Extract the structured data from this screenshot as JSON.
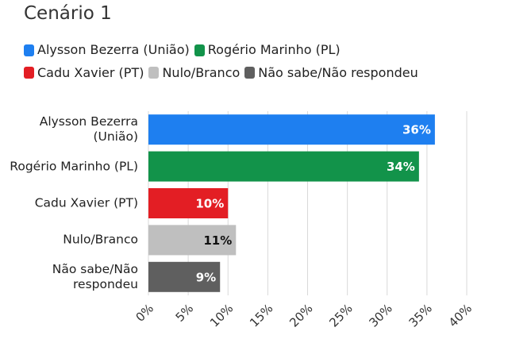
{
  "chart_data": {
    "type": "bar",
    "orientation": "horizontal",
    "title": "Cenário 1",
    "categories": [
      "Alysson Bezerra (União)",
      "Rogério Marinho (PL)",
      "Cadu Xavier (PT)",
      "Nulo/Branco",
      "Não sabe/Não respondeu"
    ],
    "values": [
      36,
      34,
      10,
      11,
      9
    ],
    "value_labels": [
      "36%",
      "34%",
      "10%",
      "11%",
      "9%"
    ],
    "colors": [
      "#1e7ff0",
      "#12934a",
      "#e31e24",
      "#bfbfbf",
      "#5f5f5f"
    ],
    "xlim": [
      0,
      40
    ],
    "xticks": [
      {
        "value": 0,
        "label": "0%"
      },
      {
        "value": 5,
        "label": "5%"
      },
      {
        "value": 10,
        "label": "10%"
      },
      {
        "value": 15,
        "label": "15%"
      },
      {
        "value": 20,
        "label": "20%"
      },
      {
        "value": 25,
        "label": "25%"
      },
      {
        "value": 30,
        "label": "30%"
      },
      {
        "value": 35,
        "label": "35%"
      },
      {
        "value": 40,
        "label": "40%"
      }
    ],
    "grid": true,
    "legend": "top-left"
  }
}
